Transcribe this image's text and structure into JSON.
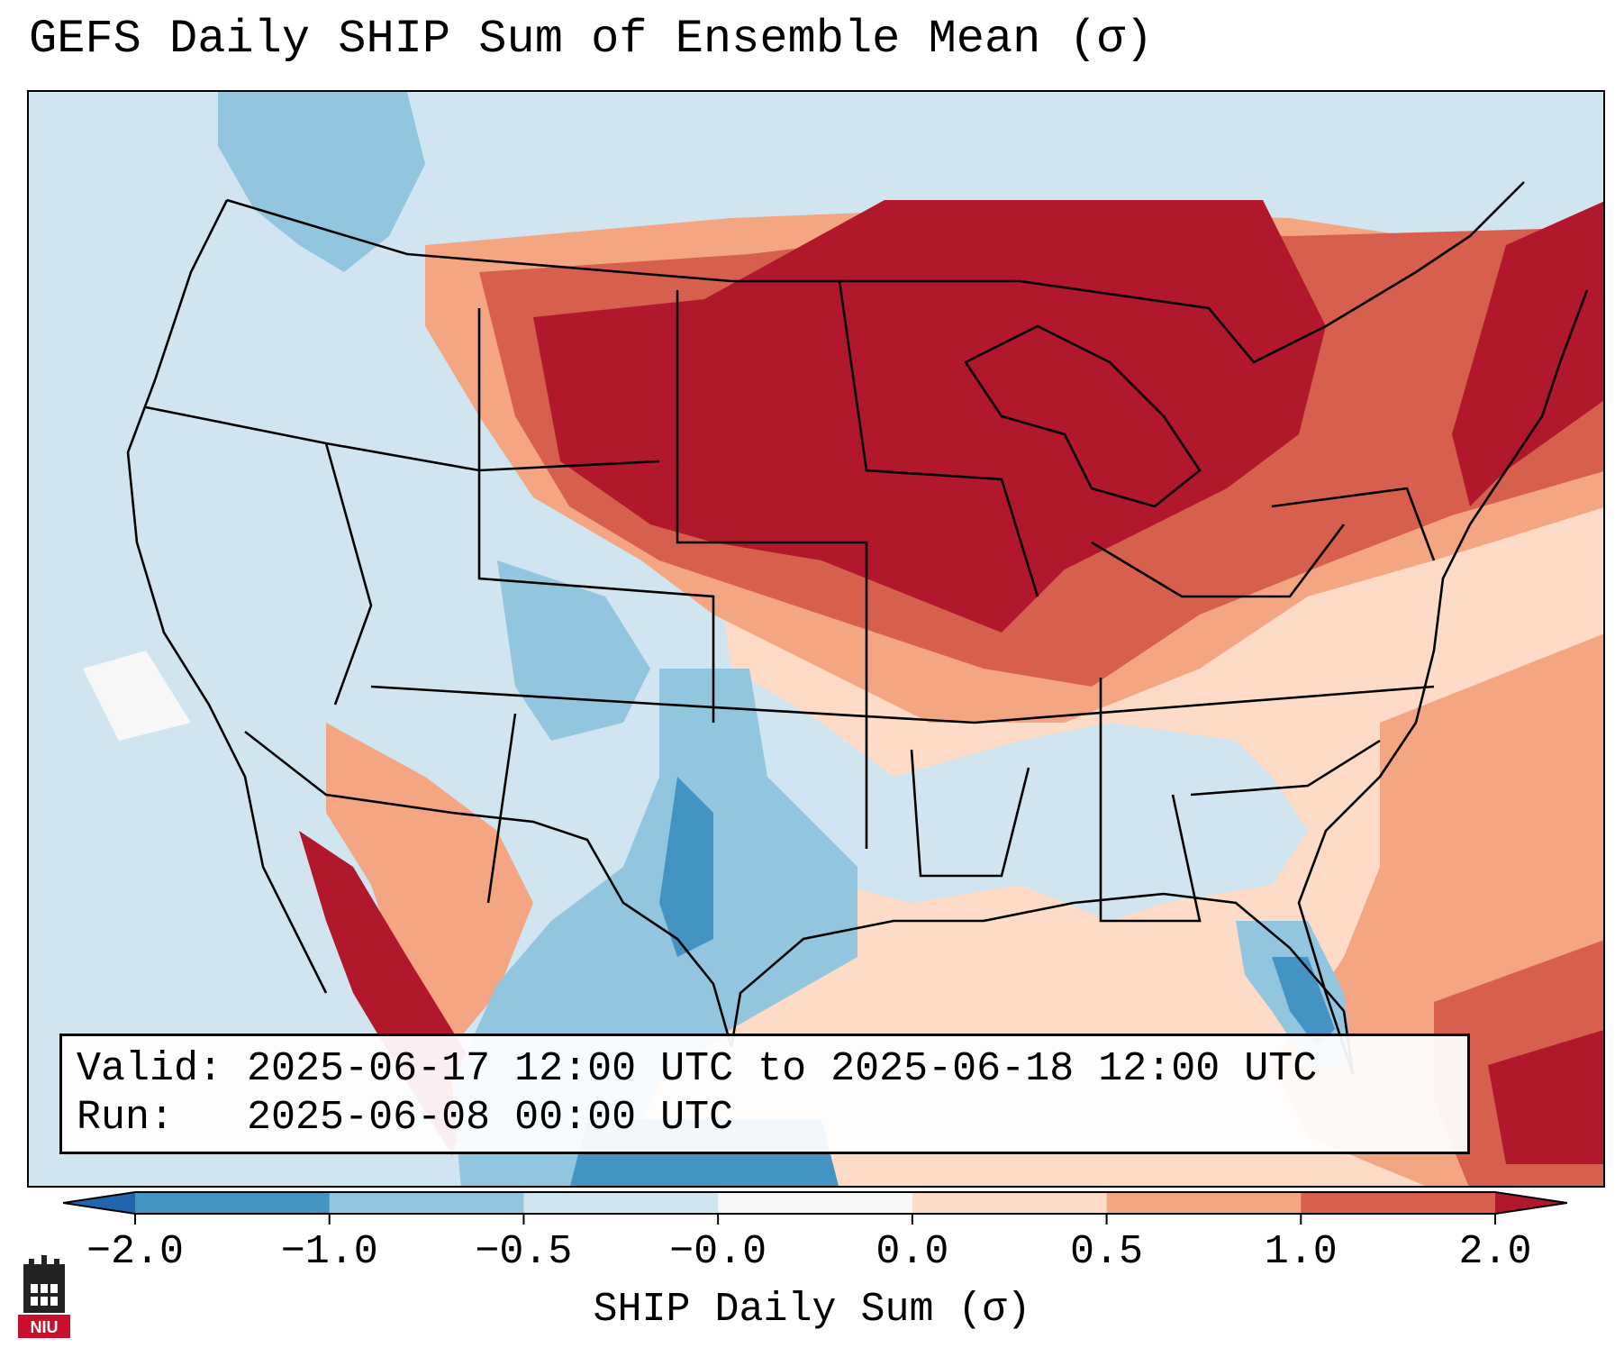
{
  "title": "GEFS Daily SHIP Sum of Ensemble Mean (σ)",
  "info_box": {
    "valid_label": "Valid:",
    "valid_value": "2025-06-17 12:00 UTC to 2025-06-18 12:00 UTC",
    "run_label": "Run:",
    "run_value": "2025-06-08 00:00 UTC"
  },
  "colorbar": {
    "label": "SHIP Daily Sum (σ)",
    "ticks": [
      "−2.0",
      "−1.0",
      "−0.5",
      "−0.0",
      "0.0",
      "0.5",
      "1.0",
      "2.0"
    ],
    "bins": [
      {
        "color": "#4393c3"
      },
      {
        "color": "#92c5de"
      },
      {
        "color": "#d1e5f0"
      },
      {
        "color": "#f7f7f7"
      },
      {
        "color": "#fddbc7"
      },
      {
        "color": "#f4a582"
      },
      {
        "color": "#d6604d"
      }
    ],
    "extend_low_color": "#2166ac",
    "extend_high_color": "#b2182b"
  },
  "map": {
    "ocean_color": "#d1e5f0",
    "border_color": "#000000"
  },
  "logo": {
    "name": "NIU",
    "text": "NIU",
    "color": "#c8102e"
  }
}
